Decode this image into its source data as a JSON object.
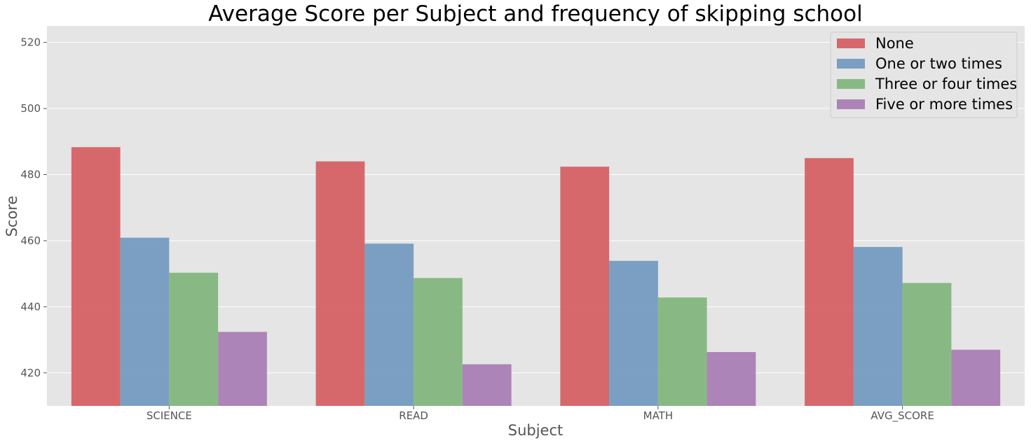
{
  "chart_data": {
    "type": "bar",
    "title": "Average Score per Subject and frequency of skipping school",
    "xlabel": "Subject",
    "ylabel": "Score",
    "categories": [
      "SCIENCE",
      "READ",
      "MATH",
      "AVG_SCORE"
    ],
    "ylim": [
      410,
      525
    ],
    "yticks": [
      420,
      440,
      460,
      480,
      500,
      520
    ],
    "grid": true,
    "legend_position": "top-right",
    "series": [
      {
        "name": "None",
        "color": "#d45a5e",
        "values": [
          488.3,
          484.0,
          482.4,
          485.0
        ]
      },
      {
        "name": "One or two times",
        "color": "#6f97be",
        "values": [
          460.9,
          459.1,
          453.9,
          458.1
        ]
      },
      {
        "name": "Three or four times",
        "color": "#7db47a",
        "values": [
          450.3,
          448.7,
          442.8,
          447.2
        ]
      },
      {
        "name": "Five or more times",
        "color": "#a679b1",
        "values": [
          432.4,
          422.6,
          426.3,
          427.0
        ]
      }
    ]
  }
}
